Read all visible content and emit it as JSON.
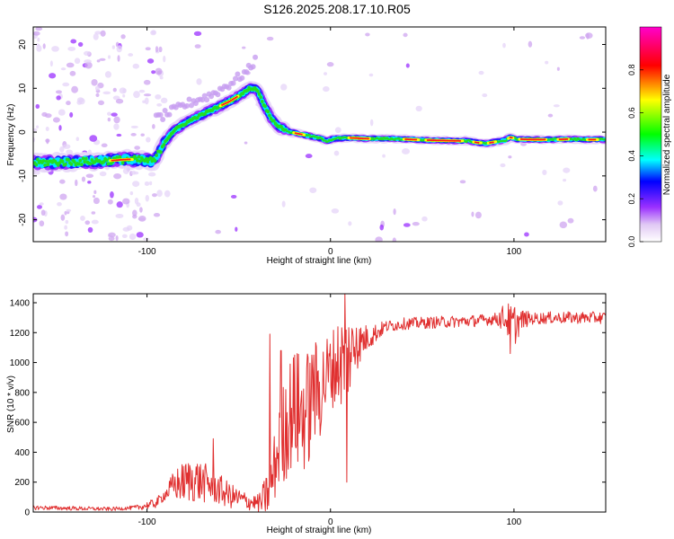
{
  "title": "S126.2025.208.17.10.R05",
  "chart_data": [
    {
      "type": "heatmap",
      "xlabel": "Height of straight line (km)",
      "ylabel": "Frequency (Hz)",
      "xlim": [
        -162,
        150
      ],
      "ylim": [
        -25,
        24
      ],
      "xticks": [
        -100,
        0,
        100
      ],
      "yticks": [
        -20,
        -10,
        0,
        10,
        20
      ],
      "grid": false,
      "colorbar": {
        "label": "Normalized spectral amplitude",
        "range": [
          0,
          1
        ],
        "ticks": [
          0.0,
          0.2,
          0.4,
          0.6,
          0.8
        ],
        "colors": [
          "#ffffff",
          "#e0c8f4",
          "#9b30ff",
          "#0000ff",
          "#00ffff",
          "#00ff00",
          "#ffff00",
          "#ff0000",
          "#ff00cc"
        ]
      },
      "ridge": {
        "x": [
          -162,
          -140,
          -120,
          -110,
          -96,
          -90,
          -85,
          -75,
          -65,
          -55,
          -48,
          -44,
          -40,
          -36,
          -32,
          -28,
          -22,
          -16,
          -10,
          -5,
          -2,
          2,
          10,
          20,
          30,
          40,
          50,
          60,
          70,
          75,
          80,
          85,
          90,
          95,
          98,
          102,
          110,
          120,
          130,
          140,
          150
        ],
        "y": [
          -7,
          -6.8,
          -6.5,
          -6.2,
          -6.6,
          -2,
          0.5,
          3,
          5,
          7,
          8.8,
          10,
          9.8,
          6,
          3,
          1.2,
          0,
          -0.5,
          -1,
          -1.5,
          -2,
          -1.5,
          -1.3,
          -1.5,
          -1.5,
          -1.6,
          -1.8,
          -1.9,
          -2,
          -2,
          -2.4,
          -2.6,
          -2.2,
          -1.9,
          -1.2,
          -1.6,
          -1.7,
          -1.7,
          -1.6,
          -1.7,
          -1.7
        ]
      },
      "secondary_ridge": {
        "x": [
          -95,
          -85,
          -75,
          -65,
          -55,
          -45,
          -40
        ],
        "y": [
          3,
          5,
          7,
          8.5,
          11,
          14,
          17
        ]
      }
    },
    {
      "type": "line",
      "xlabel": "Height of straight line (km)",
      "ylabel": "SNR (10 * v/v)",
      "xlim": [
        -162,
        150
      ],
      "ylim": [
        0,
        1460
      ],
      "xticks": [
        -100,
        0,
        100
      ],
      "yticks": [
        0,
        200,
        400,
        600,
        800,
        1000,
        1200,
        1400
      ],
      "grid": false,
      "color": "#e03030",
      "envelope": {
        "x": [
          -162,
          -120,
          -105,
          -95,
          -85,
          -75,
          -65,
          -55,
          -45,
          -38,
          -33,
          -28,
          -24,
          -20,
          -16,
          -12,
          -8,
          -4,
          0,
          4,
          8,
          12,
          18,
          25,
          30,
          40,
          60,
          80,
          95,
          100,
          105,
          120,
          150
        ],
        "y": [
          30,
          20,
          30,
          60,
          180,
          220,
          180,
          110,
          70,
          60,
          150,
          450,
          600,
          700,
          650,
          700,
          780,
          870,
          950,
          1000,
          1020,
          1080,
          1150,
          1200,
          1240,
          1260,
          1270,
          1280,
          1300,
          1250,
          1290,
          1300,
          1300
        ]
      },
      "noise_amplitude": {
        "x": [
          -162,
          -110,
          -90,
          -85,
          -75,
          -65,
          -50,
          -40,
          -32,
          -25,
          -15,
          -5,
          0,
          5,
          10,
          15,
          20,
          30,
          90,
          96,
          100,
          104,
          110,
          150
        ],
        "y": [
          15,
          12,
          40,
          110,
          160,
          120,
          70,
          50,
          200,
          380,
          420,
          350,
          250,
          320,
          300,
          150,
          90,
          40,
          40,
          110,
          150,
          70,
          40,
          40
        ]
      },
      "spikes": [
        {
          "x": -64,
          "y": 490
        },
        {
          "x": -33,
          "y": 1190
        },
        {
          "x": -27,
          "y": 1080
        },
        {
          "x": -18,
          "y": 1060
        },
        {
          "x": -9,
          "y": 1050
        },
        {
          "x": -4,
          "y": 1070
        },
        {
          "x": 8,
          "y": 1460
        },
        {
          "x": 9,
          "y": 200
        },
        {
          "x": 14,
          "y": 1230
        },
        {
          "x": 98,
          "y": 1060
        }
      ]
    }
  ]
}
